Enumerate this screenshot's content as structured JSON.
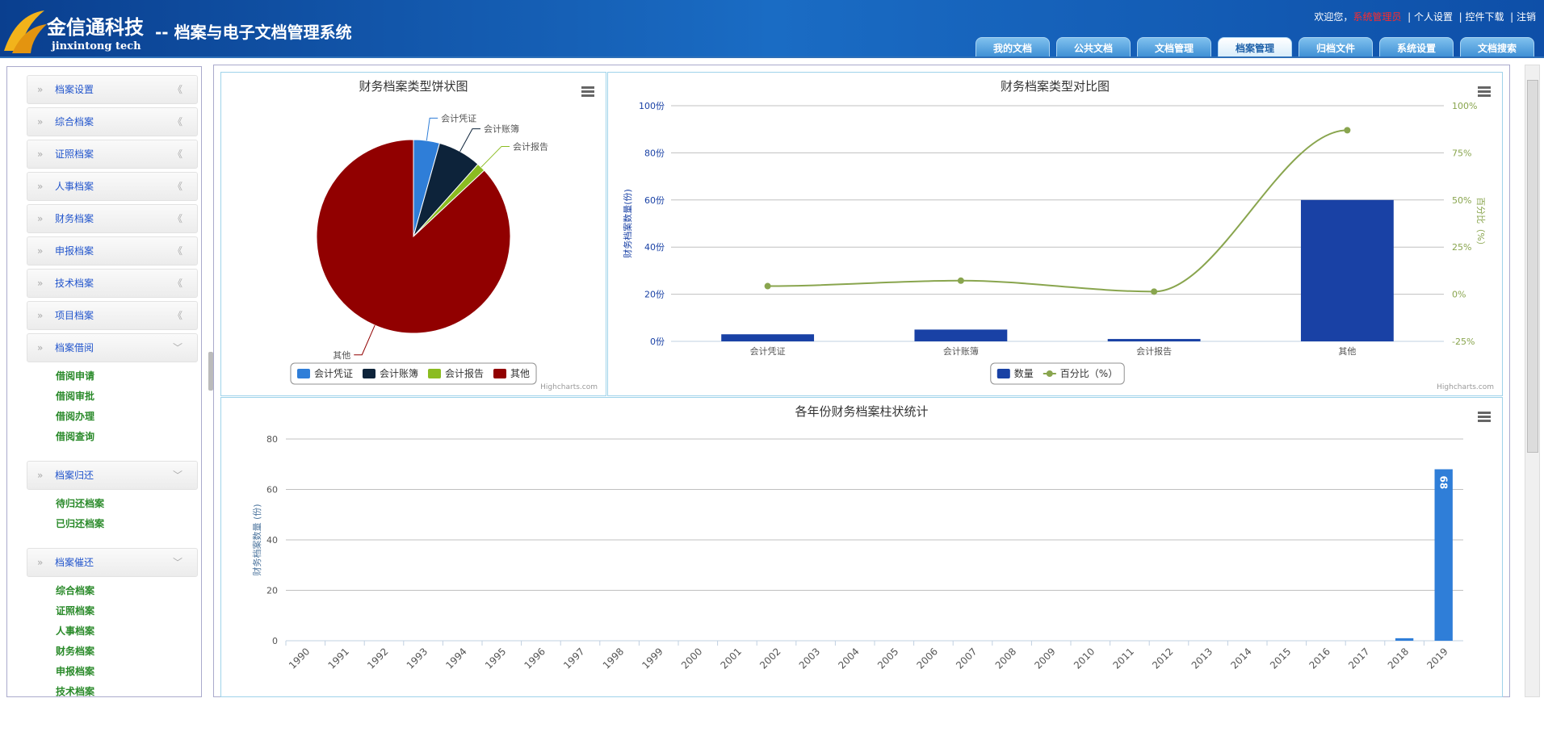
{
  "header": {
    "logo_cn": "金信通科技",
    "logo_en": "jinxintong tech",
    "system_title": "-- 档案与电子文档管理系统",
    "welcome": "欢迎您，",
    "user": "系统管理员",
    "links": [
      "个人设置",
      "控件下载",
      "注销"
    ]
  },
  "tabs": [
    "我的文档",
    "公共文档",
    "文档管理",
    "档案管理",
    "归档文件",
    "系统设置",
    "文档搜索"
  ],
  "active_tab": 3,
  "sidebar": [
    {
      "label": "档案设置"
    },
    {
      "label": "综合档案"
    },
    {
      "label": "证照档案"
    },
    {
      "label": "人事档案"
    },
    {
      "label": "财务档案"
    },
    {
      "label": "申报档案"
    },
    {
      "label": "技术档案"
    },
    {
      "label": "项目档案"
    },
    {
      "label": "档案借阅",
      "items": [
        "借阅申请",
        "借阅审批",
        "借阅办理",
        "借阅查询"
      ]
    },
    {
      "label": "档案归还",
      "items": [
        "待归还档案",
        "已归还档案"
      ]
    },
    {
      "label": "档案催还",
      "items": [
        "综合档案",
        "证照档案",
        "人事档案",
        "财务档案",
        "申报档案",
        "技术档案"
      ]
    }
  ],
  "chart_data": [
    {
      "type": "pie",
      "title": "财务档案类型饼状图",
      "categories": [
        "会计凭证",
        "会计账簿",
        "会计报告",
        "其他"
      ],
      "values": [
        3,
        5,
        1,
        60
      ],
      "colors": [
        "#2f7ed8",
        "#0d233a",
        "#8bbc21",
        "#910000"
      ],
      "legend": true,
      "credits": "Highcharts.com"
    },
    {
      "type": "combo",
      "title": "财务档案类型对比图",
      "categories": [
        "会计凭证",
        "会计账簿",
        "会计报告",
        "其他"
      ],
      "series": [
        {
          "name": "数量",
          "type": "bar",
          "color": "#1941a5",
          "values": [
            3,
            5,
            1,
            60
          ]
        },
        {
          "name": "百分比（%）",
          "type": "line",
          "axis": "y2",
          "color": "#89a54e",
          "values": [
            4.3,
            7.2,
            1.4,
            87
          ]
        }
      ],
      "ylabel": "财务档案数量(份)",
      "y2label": "百分比（%）",
      "ylim": [
        0,
        100
      ],
      "yticks": [
        {
          "value": 0,
          "label": "0份"
        },
        {
          "value": 20,
          "label": "20份"
        },
        {
          "value": 40,
          "label": "40份"
        },
        {
          "value": 60,
          "label": "60份"
        },
        {
          "value": 80,
          "label": "80份"
        },
        {
          "value": 100,
          "label": "100份"
        }
      ],
      "y2lim": [
        -25,
        100
      ],
      "y2ticks": [
        {
          "value": -25,
          "label": "-25%"
        },
        {
          "value": 0,
          "label": "0%"
        },
        {
          "value": 25,
          "label": "25%"
        },
        {
          "value": 50,
          "label": "50%"
        },
        {
          "value": 75,
          "label": "75%"
        },
        {
          "value": 100,
          "label": "100%"
        }
      ],
      "grid": true,
      "legend": true,
      "credits": "Highcharts.com"
    },
    {
      "type": "bar",
      "title": "各年份财务档案柱状统计",
      "ylabel": "财务档案数量 (份)",
      "categories": [
        "1990",
        "1991",
        "1992",
        "1993",
        "1994",
        "1995",
        "1996",
        "1997",
        "1998",
        "1999",
        "2000",
        "2001",
        "2002",
        "2003",
        "2004",
        "2005",
        "2006",
        "2007",
        "2008",
        "2009",
        "2010",
        "2011",
        "2012",
        "2013",
        "2014",
        "2015",
        "2016",
        "2017",
        "2018",
        "2019"
      ],
      "values": [
        0,
        0,
        0,
        0,
        0,
        0,
        0,
        0,
        0,
        0,
        0,
        0,
        0,
        0,
        0,
        0,
        0,
        0,
        0,
        0,
        0,
        0,
        0,
        0,
        0,
        0,
        0,
        0,
        1,
        68
      ],
      "value_labels": [
        null,
        null,
        null,
        null,
        null,
        null,
        null,
        null,
        null,
        null,
        null,
        null,
        null,
        null,
        null,
        null,
        null,
        null,
        null,
        null,
        null,
        null,
        null,
        null,
        null,
        null,
        null,
        null,
        null,
        "68"
      ],
      "color": "#2f7ed8",
      "ylim": [
        0,
        80
      ],
      "yticks": [
        0,
        20,
        40,
        60,
        80
      ],
      "grid": true
    }
  ]
}
